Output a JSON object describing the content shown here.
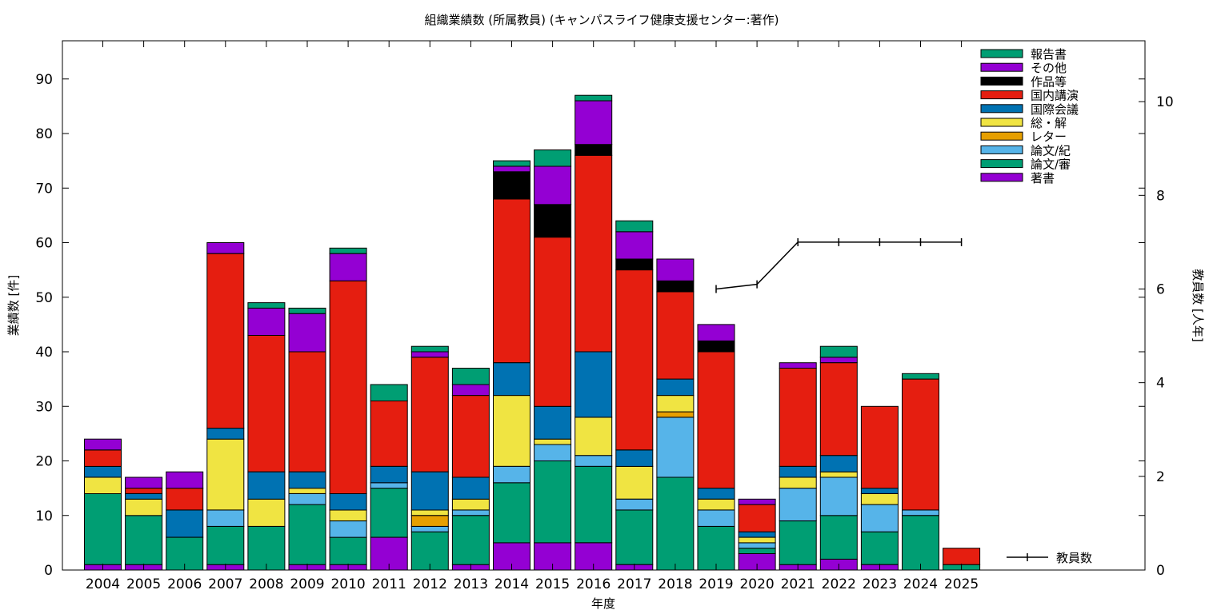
{
  "chart_data": {
    "type": "bar",
    "stacked": true,
    "title": "組織業績数 (所属教員) (キャンパスライフ健康支援センター:著作)",
    "xlabel": "年度",
    "ylabel": "業績数 [件]",
    "y2label": "教員数 [人年]",
    "ylim": [
      0,
      97
    ],
    "y2lim": [
      0,
      11.3
    ],
    "yticks": [
      0,
      10,
      20,
      30,
      40,
      50,
      60,
      70,
      80,
      90
    ],
    "y2ticks": [
      0,
      2,
      4,
      6,
      8,
      10
    ],
    "grid": false,
    "legend_position": "top-right",
    "categories": [
      "2004",
      "2005",
      "2006",
      "2007",
      "2008",
      "2009",
      "2010",
      "2011",
      "2012",
      "2013",
      "2014",
      "2015",
      "2016",
      "2017",
      "2018",
      "2019",
      "2020",
      "2021",
      "2022",
      "2023",
      "2024",
      "2025"
    ],
    "series": [
      {
        "name": "著書",
        "color": "#9400d3",
        "values": [
          1,
          1,
          0,
          1,
          0,
          1,
          1,
          6,
          0,
          1,
          5,
          5,
          5,
          1,
          0,
          0,
          3,
          1,
          2,
          1,
          0,
          0
        ]
      },
      {
        "name": "論文/審",
        "color": "#009e73",
        "values": [
          13,
          9,
          6,
          7,
          8,
          11,
          5,
          9,
          7,
          9,
          11,
          15,
          14,
          10,
          17,
          8,
          1,
          8,
          8,
          6,
          10,
          1
        ]
      },
      {
        "name": "論文/紀",
        "color": "#56b4e9",
        "values": [
          0,
          0,
          0,
          3,
          0,
          2,
          3,
          1,
          1,
          1,
          3,
          3,
          2,
          2,
          11,
          3,
          1,
          6,
          7,
          5,
          1,
          0
        ]
      },
      {
        "name": "レター",
        "color": "#e69f00",
        "values": [
          0,
          0,
          0,
          0,
          0,
          0,
          0,
          0,
          2,
          0,
          0,
          0,
          0,
          0,
          1,
          0,
          0,
          0,
          0,
          0,
          0,
          0
        ]
      },
      {
        "name": "総・解",
        "color": "#f0e442",
        "values": [
          3,
          3,
          0,
          13,
          5,
          1,
          2,
          0,
          1,
          2,
          13,
          1,
          7,
          6,
          3,
          2,
          1,
          2,
          1,
          2,
          0,
          0
        ]
      },
      {
        "name": "国際会議",
        "color": "#0072b2",
        "values": [
          2,
          1,
          5,
          2,
          5,
          3,
          3,
          3,
          7,
          4,
          6,
          6,
          12,
          3,
          3,
          2,
          1,
          2,
          3,
          1,
          0,
          0
        ]
      },
      {
        "name": "国内講演",
        "color": "#e51e10",
        "values": [
          3,
          1,
          4,
          32,
          25,
          22,
          39,
          12,
          21,
          15,
          30,
          31,
          36,
          33,
          16,
          25,
          5,
          18,
          17,
          15,
          24,
          3
        ]
      },
      {
        "name": "作品等",
        "color": "#000000",
        "values": [
          0,
          0,
          0,
          0,
          0,
          0,
          0,
          0,
          0,
          0,
          5,
          6,
          2,
          2,
          2,
          2,
          0,
          0,
          0,
          0,
          0,
          0
        ]
      },
      {
        "name": "その他",
        "color": "#9400d3",
        "values": [
          2,
          2,
          3,
          2,
          5,
          7,
          5,
          0,
          1,
          2,
          1,
          7,
          8,
          5,
          4,
          3,
          1,
          1,
          1,
          0,
          0,
          0
        ]
      },
      {
        "name": "報告書",
        "color": "#009e73",
        "values": [
          0,
          0,
          0,
          0,
          1,
          1,
          1,
          3,
          1,
          3,
          1,
          3,
          1,
          2,
          0,
          0,
          0,
          0,
          2,
          0,
          1,
          0
        ]
      }
    ],
    "line_series": {
      "name": "教員数",
      "color": "#000000",
      "axis": "y2",
      "x": [
        "2019",
        "2020",
        "2021",
        "2022",
        "2023",
        "2024",
        "2025"
      ],
      "values": [
        6.0,
        6.1,
        7.0,
        7.0,
        7.0,
        7.0,
        7.0
      ]
    }
  }
}
